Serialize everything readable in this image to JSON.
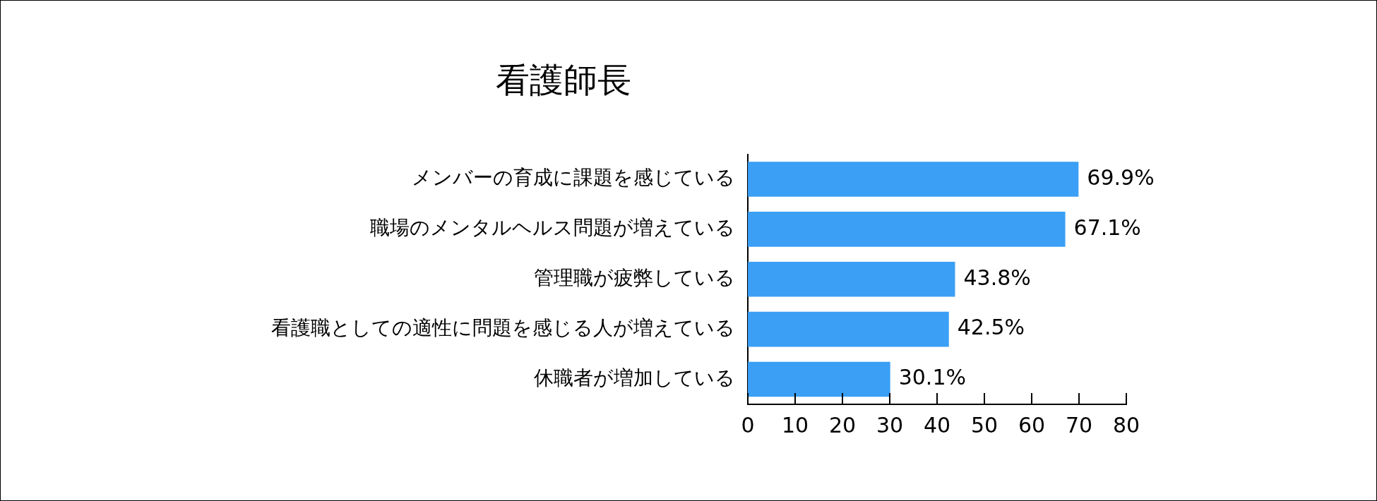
{
  "chart_data": {
    "type": "bar",
    "orientation": "horizontal",
    "title": "看護師長",
    "categories": [
      "メンバーの育成に課題を感じている",
      "職場のメンタルヘルス問題が増えている",
      "管理職が疲弊している",
      "看護職としての適性に問題を感じる人が増えている",
      "休職者が増加している"
    ],
    "values": [
      69.9,
      67.1,
      43.8,
      42.5,
      30.1
    ],
    "value_labels": [
      "69.9%",
      "67.1%",
      "43.8%",
      "42.5%",
      "30.1%"
    ],
    "color": "#3a9ff5",
    "xlim": [
      0,
      80
    ],
    "xticks": [
      0,
      10,
      20,
      30,
      40,
      50,
      60,
      70,
      80
    ],
    "grid": false,
    "legend": false
  }
}
